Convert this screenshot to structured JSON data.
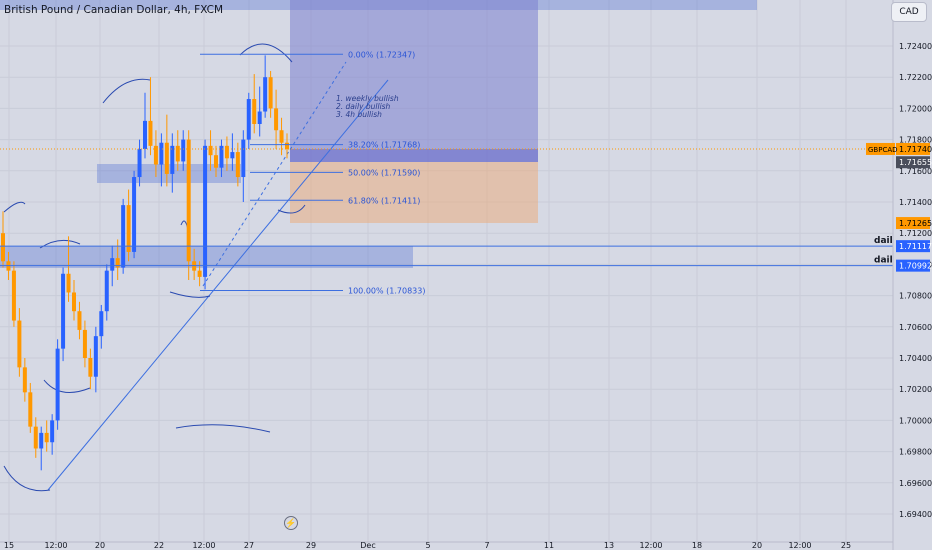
{
  "header": {
    "title": "British Pound / Canadian Dollar, 4h, FXCM",
    "currency_button": "CAD"
  },
  "colors": {
    "up": "#2962ff",
    "down": "#ff9800",
    "price_axis_bg": "#d6d9e4",
    "zone_blue": "#4c6ed4",
    "zone_purple": "#7b7fd0",
    "zone_orange": "#f0a56b",
    "line": "#3d6fe0"
  },
  "chart_data": {
    "type": "candlestick",
    "symbol": "GBPCAD",
    "interval": "4h",
    "y_ticks": [
      "1.72400",
      "1.72200",
      "1.72000",
      "1.71800",
      "1.71600",
      "1.71400",
      "1.71200",
      "1.71000",
      "1.70800",
      "1.70600",
      "1.70400",
      "1.70200",
      "1.70000",
      "1.69800",
      "1.69600",
      "1.69400"
    ],
    "x_ticks": [
      "15",
      "12:00",
      "20",
      "22",
      "12:00",
      "27",
      "29",
      "Dec",
      "5",
      "7",
      "11",
      "13",
      "12:00",
      "18",
      "20",
      "12:00",
      "25"
    ],
    "ylim": [
      1.693,
      1.7265
    ],
    "candles": [
      [
        1.712,
        1.7134,
        1.7098,
        1.7102
      ],
      [
        1.7102,
        1.7108,
        1.709,
        1.7096
      ],
      [
        1.7096,
        1.7102,
        1.706,
        1.7064
      ],
      [
        1.7064,
        1.7072,
        1.7028,
        1.7034
      ],
      [
        1.7034,
        1.704,
        1.7012,
        1.7018
      ],
      [
        1.7018,
        1.7024,
        1.6992,
        1.6996
      ],
      [
        1.6996,
        1.7002,
        1.6976,
        1.6982
      ],
      [
        1.6982,
        1.6996,
        1.6968,
        1.6992
      ],
      [
        1.6992,
        1.7,
        1.698,
        1.6986
      ],
      [
        1.6986,
        1.7004,
        1.6978,
        1.7
      ],
      [
        1.7,
        1.7052,
        1.6994,
        1.7046
      ],
      [
        1.7046,
        1.7098,
        1.7038,
        1.7094
      ],
      [
        1.7094,
        1.7118,
        1.7076,
        1.7082
      ],
      [
        1.7082,
        1.709,
        1.7064,
        1.707
      ],
      [
        1.707,
        1.7076,
        1.7052,
        1.7058
      ],
      [
        1.7058,
        1.7064,
        1.7034,
        1.704
      ],
      [
        1.704,
        1.7046,
        1.702,
        1.7028
      ],
      [
        1.7028,
        1.706,
        1.7018,
        1.7054
      ],
      [
        1.7054,
        1.7074,
        1.7046,
        1.707
      ],
      [
        1.707,
        1.71,
        1.7064,
        1.7096
      ],
      [
        1.7096,
        1.7112,
        1.7086,
        1.7104
      ],
      [
        1.7104,
        1.7116,
        1.709,
        1.7098
      ],
      [
        1.7098,
        1.7142,
        1.7094,
        1.7138
      ],
      [
        1.7138,
        1.7148,
        1.7102,
        1.7108
      ],
      [
        1.7108,
        1.716,
        1.7104,
        1.7156
      ],
      [
        1.7156,
        1.718,
        1.715,
        1.7174
      ],
      [
        1.7174,
        1.721,
        1.7168,
        1.7192
      ],
      [
        1.7192,
        1.722,
        1.717,
        1.7176
      ],
      [
        1.7176,
        1.7186,
        1.7156,
        1.7164
      ],
      [
        1.7164,
        1.7184,
        1.715,
        1.7178
      ],
      [
        1.7178,
        1.7196,
        1.715,
        1.7158
      ],
      [
        1.7158,
        1.7184,
        1.7146,
        1.7176
      ],
      [
        1.7176,
        1.7186,
        1.716,
        1.7166
      ],
      [
        1.7166,
        1.7186,
        1.716,
        1.718
      ],
      [
        1.718,
        1.7186,
        1.709,
        1.7102
      ],
      [
        1.7102,
        1.711,
        1.709,
        1.7096
      ],
      [
        1.7096,
        1.7102,
        1.7086,
        1.7092
      ],
      [
        1.7092,
        1.718,
        1.7084,
        1.7176
      ],
      [
        1.7176,
        1.7186,
        1.716,
        1.717
      ],
      [
        1.717,
        1.7176,
        1.7156,
        1.7162
      ],
      [
        1.7162,
        1.718,
        1.7156,
        1.7176
      ],
      [
        1.7176,
        1.7182,
        1.716,
        1.7168
      ],
      [
        1.7168,
        1.7184,
        1.716,
        1.7172
      ],
      [
        1.7172,
        1.7178,
        1.715,
        1.7156
      ],
      [
        1.7156,
        1.7186,
        1.714,
        1.718
      ],
      [
        1.718,
        1.721,
        1.7174,
        1.7206
      ],
      [
        1.7206,
        1.7222,
        1.7184,
        1.719
      ],
      [
        1.719,
        1.7214,
        1.7182,
        1.7198
      ],
      [
        1.7198,
        1.7234,
        1.7194,
        1.722
      ],
      [
        1.722,
        1.7224,
        1.7194,
        1.72
      ],
      [
        1.72,
        1.7212,
        1.7174,
        1.7186
      ],
      [
        1.7186,
        1.7194,
        1.717,
        1.7178
      ],
      [
        1.7178,
        1.7184,
        1.7168,
        1.7174
      ]
    ],
    "fib": [
      {
        "label": "0.00% (1.72347)",
        "value": 1.72347
      },
      {
        "label": "38.20% (1.71768)",
        "value": 1.71768
      },
      {
        "label": "50.00% (1.71590)",
        "value": 1.7159
      },
      {
        "label": "61.80% (1.71411)",
        "value": 1.71411
      },
      {
        "label": "100.00% (1.70833)",
        "value": 1.70833
      }
    ],
    "notes": [
      "1. weekly bullish",
      "2. daily bullish",
      "3. 4h bullish"
    ],
    "level_lines": [
      {
        "label": "daily",
        "value": 1.71117
      },
      {
        "label": "daily",
        "value": 1.70992
      }
    ],
    "price_labels": [
      {
        "text": "1.71740",
        "value": 1.7174,
        "bg": "#ff9800",
        "fg": "#000000"
      },
      {
        "text": "1.71655",
        "value": 1.71655,
        "bg": "#4a4e5c",
        "fg": "#ffffff"
      },
      {
        "text": "1.71265",
        "value": 1.71265,
        "bg": "#ff9800",
        "fg": "#000000"
      },
      {
        "text": "1.71117",
        "value": 1.71117,
        "bg": "#2962ff",
        "fg": "#ffffff"
      },
      {
        "text": "1.70992",
        "value": 1.70992,
        "bg": "#2962ff",
        "fg": "#ffffff"
      }
    ],
    "symbol_tag": "GBPCAD"
  }
}
